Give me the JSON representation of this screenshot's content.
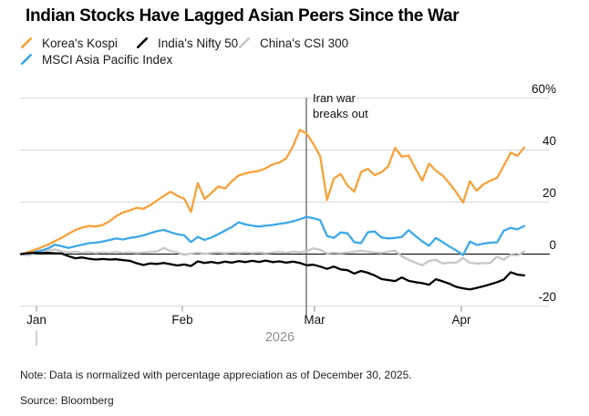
{
  "title": "Indian Stocks Have Lagged Asian Peers Since the War",
  "notes": {
    "note": "Note: Data is normalized with percentage appreciation as of December 30, 2025.",
    "source": "Source: Bloomberg"
  },
  "chart_data": {
    "type": "line",
    "title": "Indian Stocks Have Lagged Asian Peers Since the War",
    "unit": "percent appreciation since December 30, 2025",
    "ylim": [
      -24,
      62
    ],
    "grid": "horizontal",
    "legend_position": "top-left",
    "y_axis": {
      "tick_labels": [
        "60%",
        "40",
        "20",
        "0",
        "-20"
      ],
      "tick_values": [
        60,
        40,
        20,
        0,
        -20
      ]
    },
    "x_axis": {
      "tick_labels": [
        "Jan",
        "Feb",
        "Mar",
        "Apr"
      ],
      "year_label": "2026"
    },
    "annotation": {
      "line1": "Iran war",
      "line2": "breaks out",
      "event_x": "late February 2026"
    },
    "colors": {
      "grid": "#d9d9d9",
      "zero_line": "#000000",
      "event_line": "#4a4a4a",
      "tick": "#9b9b9b",
      "year_text": "#8f8f8f"
    },
    "series": [
      {
        "name": "Korea's Kospi",
        "color": "#f7a139",
        "values": [
          0,
          0.7,
          1.6,
          2.6,
          3.6,
          5.0,
          6.3,
          7.8,
          9.3,
          10.2,
          10.8,
          10.6,
          11.2,
          12.6,
          14.6,
          16.0,
          16.8,
          17.8,
          17.4,
          18.8,
          20.6,
          22.4,
          24.0,
          22.4,
          21.3,
          16.2,
          27.3,
          21.2,
          23.5,
          26.0,
          25.2,
          28.0,
          30.2,
          31.0,
          31.6,
          32.0,
          33.0,
          34.5,
          35.2,
          36.8,
          41.5,
          47.8,
          46.3,
          42.3,
          37.6,
          20.8,
          29.0,
          30.8,
          26.4,
          24.0,
          31.5,
          32.8,
          30.3,
          31.5,
          33.8,
          40.9,
          37.4,
          37.9,
          33.0,
          28.2,
          34.8,
          32.1,
          30.2,
          27.2,
          23.8,
          19.8,
          28.0,
          24.4,
          26.8,
          28.2,
          29.3,
          34.0,
          39.0,
          37.8,
          41.0
        ]
      },
      {
        "name": "India's Nifty 50",
        "color": "#000000",
        "values": [
          0,
          0.3,
          0.5,
          0.4,
          0.5,
          0.3,
          0.2,
          -0.8,
          -1.6,
          -1.3,
          -1.8,
          -2.1,
          -1.9,
          -2.1,
          -2.0,
          -2.3,
          -2.6,
          -3.5,
          -4.2,
          -3.6,
          -3.8,
          -3.4,
          -3.9,
          -4.4,
          -4.0,
          -4.6,
          -2.8,
          -3.4,
          -3.0,
          -3.5,
          -2.9,
          -3.3,
          -2.7,
          -3.1,
          -2.6,
          -3.0,
          -2.5,
          -3.1,
          -2.8,
          -3.3,
          -2.9,
          -3.4,
          -4.3,
          -4.1,
          -4.8,
          -5.7,
          -4.8,
          -5.9,
          -6.2,
          -7.5,
          -6.5,
          -7.2,
          -8.2,
          -9.6,
          -10.0,
          -10.4,
          -9.0,
          -10.3,
          -10.8,
          -11.2,
          -11.8,
          -9.7,
          -10.5,
          -11.4,
          -12.6,
          -13.2,
          -13.6,
          -13.0,
          -12.4,
          -11.6,
          -10.8,
          -9.8,
          -7.0,
          -7.9,
          -8.2
        ]
      },
      {
        "name": "China's CSI 300",
        "color": "#c7c7c7",
        "values": [
          0,
          -0.5,
          0.3,
          0.8,
          1.4,
          1.8,
          1.0,
          0.6,
          0.9,
          0.5,
          0.8,
          0.4,
          0.7,
          0.5,
          0.8,
          0.5,
          0.7,
          0.4,
          0.6,
          0.8,
          1.0,
          2.3,
          1.2,
          0.6,
          -0.3,
          0.2,
          0.5,
          0.1,
          0.4,
          0.6,
          0.3,
          0.6,
          0.4,
          0.7,
          0.4,
          0.6,
          0.3,
          0.6,
          0.8,
          0.5,
          0.9,
          0.7,
          1.2,
          2.2,
          1.6,
          0.2,
          0.5,
          0.3,
          0.6,
          0.9,
          1.3,
          0.9,
          0.6,
          0.4,
          0.9,
          1.3,
          -0.8,
          -2.2,
          -3.3,
          -4.3,
          -2.6,
          -2.2,
          -3.6,
          -3.3,
          -3.3,
          -1.5,
          -3.3,
          -3.6,
          -3.5,
          -3.4,
          -0.9,
          -2.2,
          -0.2,
          -0.5,
          1.0
        ]
      },
      {
        "name": "MSCI Asia Pacific Index",
        "color": "#3da8e8",
        "values": [
          0,
          0.3,
          0.8,
          1.4,
          2.2,
          3.6,
          3.0,
          2.4,
          3.0,
          3.6,
          4.2,
          4.4,
          4.8,
          5.4,
          6.0,
          5.6,
          6.2,
          6.6,
          7.2,
          8.0,
          8.8,
          9.3,
          8.4,
          7.6,
          7.2,
          4.6,
          6.6,
          5.4,
          6.4,
          7.6,
          9.0,
          10.4,
          12.2,
          11.4,
          10.9,
          10.6,
          10.9,
          11.2,
          11.6,
          12.0,
          12.6,
          13.4,
          14.3,
          13.8,
          13.0,
          7.0,
          6.2,
          8.3,
          8.0,
          4.6,
          4.2,
          8.4,
          8.7,
          6.4,
          6.0,
          6.2,
          6.6,
          9.2,
          7.0,
          4.9,
          3.2,
          6.2,
          4.6,
          2.9,
          1.4,
          -0.4,
          4.8,
          3.5,
          4.0,
          4.4,
          4.5,
          9.0,
          10.1,
          9.5,
          10.8
        ]
      }
    ]
  }
}
